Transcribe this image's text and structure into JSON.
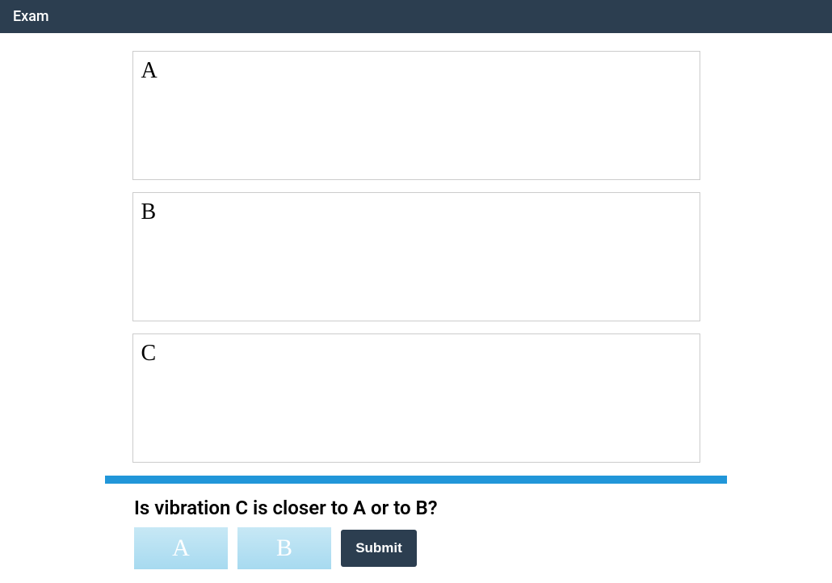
{
  "header": {
    "title": "Exam"
  },
  "panels": [
    {
      "label": "A"
    },
    {
      "label": "B"
    },
    {
      "label": "C"
    }
  ],
  "question": {
    "text": "Is vibration C is closer to A or to B?"
  },
  "choices": [
    {
      "label": "A"
    },
    {
      "label": "B"
    }
  ],
  "submit": {
    "label": "Submit"
  },
  "colors": {
    "header_bg": "#2c3e50",
    "divider": "#2196d9",
    "panel_border": "#cccccc",
    "choice_gradient_top": "#c7e8f5",
    "choice_gradient_bottom": "#a7daf0",
    "submit_bg": "#2c3e50"
  }
}
